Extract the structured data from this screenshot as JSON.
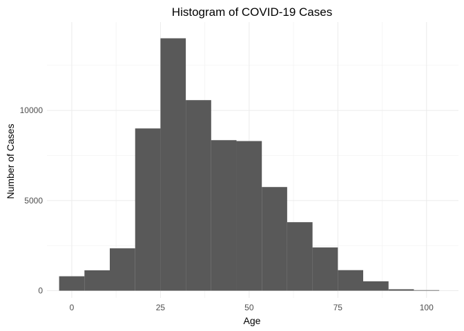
{
  "chart_data": {
    "type": "bar",
    "title": "Histogram of COVID-19 Cases",
    "xlabel": "Age",
    "ylabel": "Number of Cases",
    "x_ticks": [
      0,
      25,
      50,
      75,
      100
    ],
    "y_ticks": [
      0,
      5000,
      10000
    ],
    "xlim": [
      -7,
      109
    ],
    "ylim": [
      -400,
      14900
    ],
    "bin_width": 7.14,
    "bins": [
      {
        "x0": -3.57,
        "x1": 3.57,
        "count": 800
      },
      {
        "x0": 3.57,
        "x1": 10.71,
        "count": 1130
      },
      {
        "x0": 10.71,
        "x1": 17.86,
        "count": 2350
      },
      {
        "x0": 17.86,
        "x1": 25.0,
        "count": 9000
      },
      {
        "x0": 25.0,
        "x1": 32.14,
        "count": 14000
      },
      {
        "x0": 32.14,
        "x1": 39.29,
        "count": 10570
      },
      {
        "x0": 39.29,
        "x1": 46.43,
        "count": 8350
      },
      {
        "x0": 46.43,
        "x1": 53.57,
        "count": 8300
      },
      {
        "x0": 53.57,
        "x1": 60.71,
        "count": 5750
      },
      {
        "x0": 60.71,
        "x1": 67.86,
        "count": 3800
      },
      {
        "x0": 67.86,
        "x1": 75.0,
        "count": 2400
      },
      {
        "x0": 75.0,
        "x1": 82.14,
        "count": 1140
      },
      {
        "x0": 82.14,
        "x1": 89.29,
        "count": 520
      },
      {
        "x0": 89.29,
        "x1": 96.43,
        "count": 80
      },
      {
        "x0": 96.43,
        "x1": 103.57,
        "count": 30
      }
    ],
    "grid": true,
    "legend": "none"
  }
}
